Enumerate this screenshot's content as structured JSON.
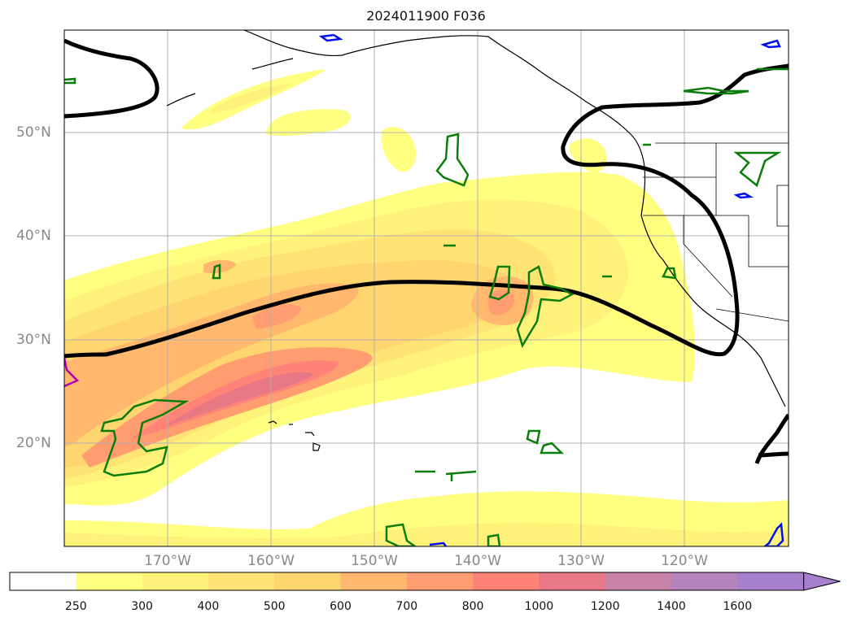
{
  "title": "2024011900 F036",
  "map": {
    "extent": {
      "lon_min": -180,
      "lon_max": -110,
      "lat_min": 10,
      "lat_max": 60
    },
    "lon_ticks": [
      {
        "lon": -170,
        "label": "170°W"
      },
      {
        "lon": -160,
        "label": "160°W"
      },
      {
        "lon": -150,
        "label": "150°W"
      },
      {
        "lon": -140,
        "label": "140°W"
      },
      {
        "lon": -130,
        "label": "130°W"
      },
      {
        "lon": -120,
        "label": "120°W"
      }
    ],
    "lat_ticks": [
      {
        "lat": 20,
        "label": "20°N"
      },
      {
        "lat": 30,
        "label": "30°N"
      },
      {
        "lat": 40,
        "label": "40°N"
      },
      {
        "lat": 50,
        "label": "50°N"
      }
    ],
    "gridlines": true
  },
  "colorbar": {
    "levels": [
      "250",
      "300",
      "400",
      "500",
      "600",
      "700",
      "800",
      "1000",
      "1200",
      "1400",
      "1600"
    ],
    "colors": [
      "#ffffff",
      "#ffff80",
      "#fff27a",
      "#ffe475",
      "#ffd570",
      "#ffb86e",
      "#ff9d70",
      "#ff8477",
      "#e87886",
      "#c882a8",
      "#b484bf",
      "#a680cc"
    ],
    "extend": "max"
  }
}
